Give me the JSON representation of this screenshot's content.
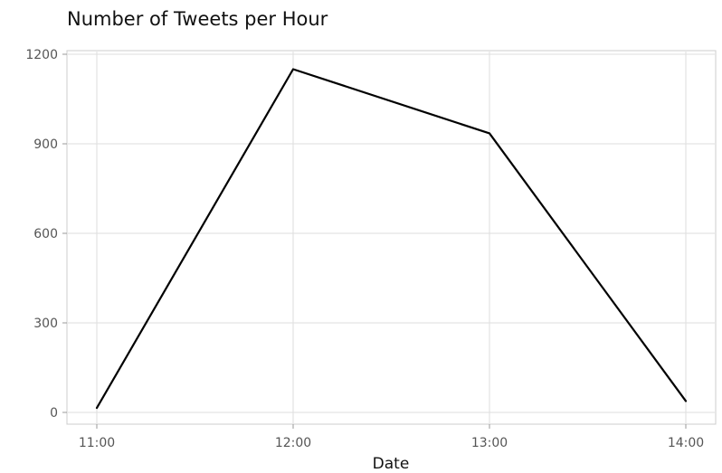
{
  "chart_data": {
    "type": "line",
    "title": "Number of Tweets per Hour",
    "xlabel": "Date",
    "ylabel": "",
    "x": [
      "11:00",
      "12:00",
      "13:00",
      "14:00"
    ],
    "series": [
      {
        "values": [
          15,
          1150,
          935,
          38
        ]
      }
    ],
    "ylim": [
      0,
      1200
    ],
    "yticks": [
      0,
      300,
      600,
      900,
      1200
    ],
    "grid": true,
    "legend": "none",
    "colors": {
      "line": "#000000",
      "grid": "#dddddd",
      "panel_border": "#cccccc",
      "tick_text": "#555555",
      "title_text": "#111111"
    }
  }
}
